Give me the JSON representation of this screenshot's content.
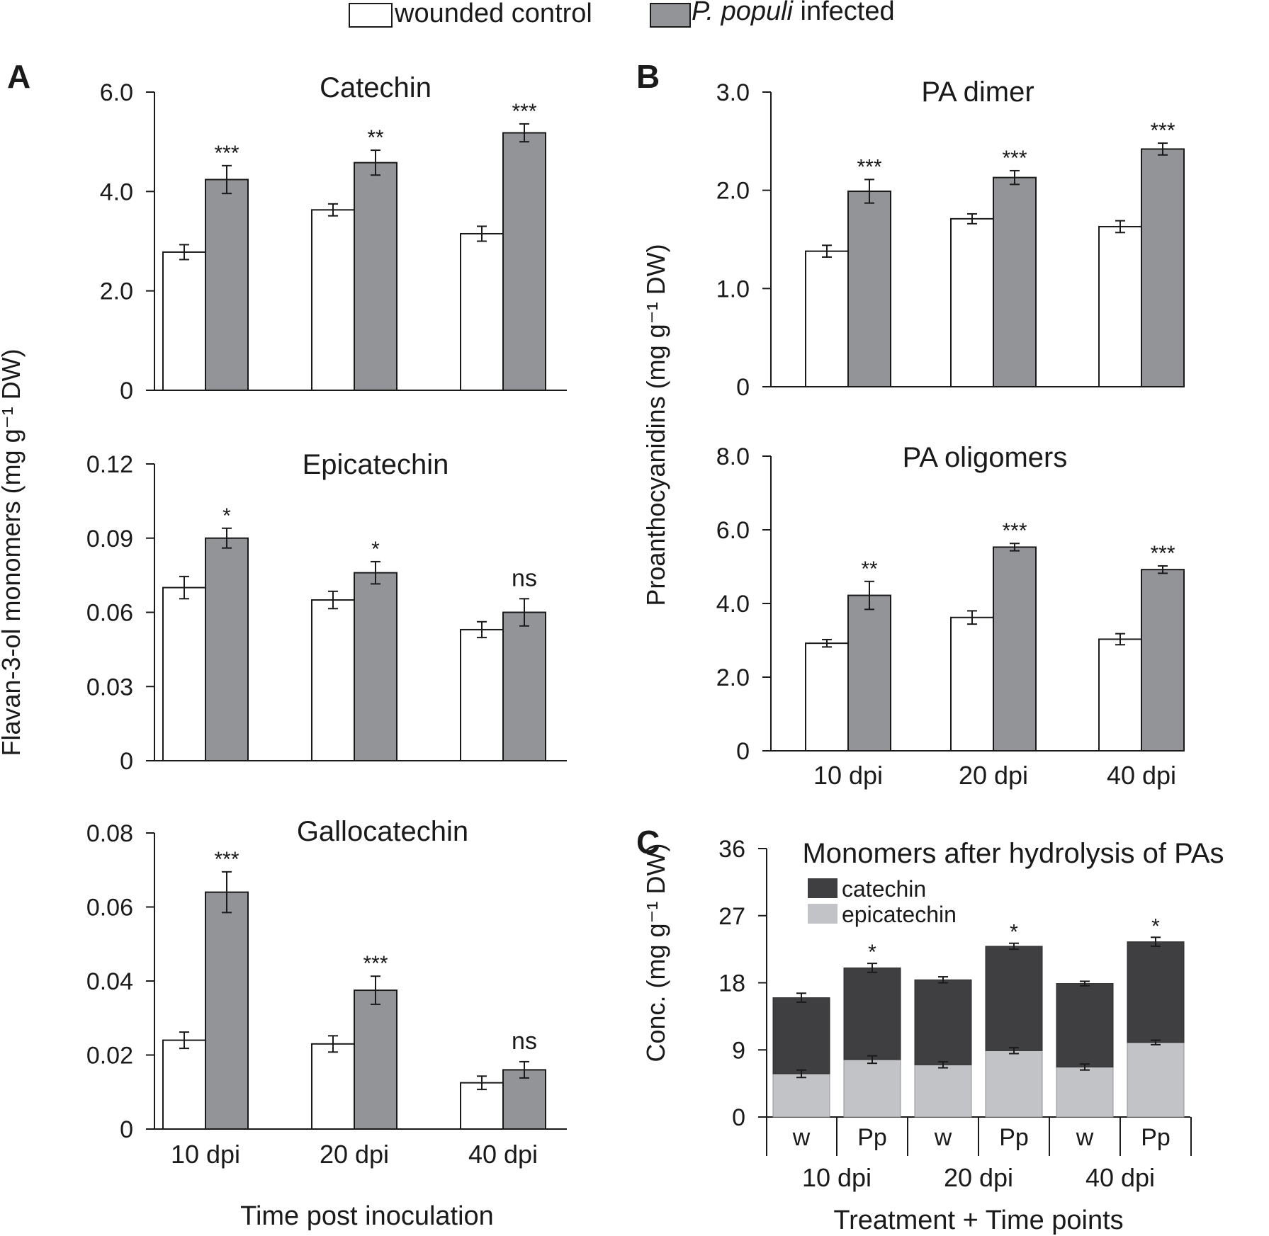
{
  "colors": {
    "control": "#ffffff",
    "infected": "#929497",
    "catechin": "#3f3f41",
    "epicatechin": "#c2c3c6",
    "ink": "#1a1a1a"
  },
  "legend": {
    "control_label": "wounded control",
    "infected_prefix": "P. populi",
    "infected_suffix": " infected"
  },
  "panel_letters": {
    "a": "A",
    "b": "B",
    "c": "C"
  },
  "axis_titles": {
    "a_y": "Flavan-3-ol monomers (mg g⁻¹ DW)",
    "a_x": "Time post inoculation",
    "b_y": "Proanthocyanidins (mg g⁻¹ DW)",
    "c_y": "Conc. (mg g⁻¹ DW)",
    "c_x": "Treatment + Time points"
  },
  "chart_data": [
    {
      "id": "catechin",
      "panel": "A",
      "type": "bar",
      "title": "Catechin",
      "categories": [
        "10 dpi",
        "20 dpi",
        "40 dpi"
      ],
      "ylim": [
        0,
        6.0
      ],
      "yticks": [
        {
          "v": 0,
          "label": "0"
        },
        {
          "v": 2.0,
          "label": "2.0"
        },
        {
          "v": 4.0,
          "label": "4.0"
        },
        {
          "v": 6.0,
          "label": "6.0"
        }
      ],
      "series": [
        {
          "name": "wounded control",
          "values": [
            2.78,
            3.63,
            3.15
          ],
          "errors": [
            0.15,
            0.12,
            0.15
          ]
        },
        {
          "name": "P. populi infected",
          "values": [
            4.24,
            4.58,
            5.18
          ],
          "errors": [
            0.28,
            0.25,
            0.18
          ]
        }
      ],
      "significance": [
        "***",
        "**",
        "***"
      ],
      "show_xticks": false
    },
    {
      "id": "epicatechin",
      "panel": "A",
      "type": "bar",
      "title": "Epicatechin",
      "categories": [
        "10 dpi",
        "20 dpi",
        "40 dpi"
      ],
      "ylim": [
        0,
        0.12
      ],
      "yticks": [
        {
          "v": 0,
          "label": "0"
        },
        {
          "v": 0.03,
          "label": "0.03"
        },
        {
          "v": 0.06,
          "label": "0.06"
        },
        {
          "v": 0.09,
          "label": "0.09"
        },
        {
          "v": 0.12,
          "label": "0.12"
        }
      ],
      "series": [
        {
          "name": "wounded control",
          "values": [
            0.07,
            0.065,
            0.053
          ],
          "errors": [
            0.0045,
            0.0035,
            0.0032
          ]
        },
        {
          "name": "P. populi infected",
          "values": [
            0.09,
            0.076,
            0.06
          ],
          "errors": [
            0.004,
            0.0045,
            0.0055
          ]
        }
      ],
      "significance": [
        "*",
        "*",
        "ns"
      ],
      "show_xticks": false
    },
    {
      "id": "gallocatechin",
      "panel": "A",
      "type": "bar",
      "title": "Gallocatechin",
      "categories": [
        "10 dpi",
        "20 dpi",
        "40 dpi"
      ],
      "ylim": [
        0,
        0.08
      ],
      "yticks": [
        {
          "v": 0,
          "label": "0"
        },
        {
          "v": 0.02,
          "label": "0.02"
        },
        {
          "v": 0.04,
          "label": "0.04"
        },
        {
          "v": 0.06,
          "label": "0.06"
        },
        {
          "v": 0.08,
          "label": "0.08"
        }
      ],
      "series": [
        {
          "name": "wounded control",
          "values": [
            0.024,
            0.023,
            0.0125
          ],
          "errors": [
            0.0022,
            0.0022,
            0.0018
          ]
        },
        {
          "name": "P. populi infected",
          "values": [
            0.064,
            0.0375,
            0.016
          ],
          "errors": [
            0.0055,
            0.0038,
            0.0022
          ]
        }
      ],
      "significance": [
        "***",
        "***",
        "ns"
      ],
      "show_xticks": true
    },
    {
      "id": "pa-dimer",
      "panel": "B",
      "type": "bar",
      "title": "PA dimer",
      "categories": [
        "10 dpi",
        "20 dpi",
        "40 dpi"
      ],
      "ylim": [
        0,
        3.0
      ],
      "yticks": [
        {
          "v": 0,
          "label": "0"
        },
        {
          "v": 1.0,
          "label": "1.0"
        },
        {
          "v": 2.0,
          "label": "2.0"
        },
        {
          "v": 3.0,
          "label": "3.0"
        }
      ],
      "series": [
        {
          "name": "wounded control",
          "values": [
            1.38,
            1.71,
            1.63
          ],
          "errors": [
            0.06,
            0.05,
            0.06
          ]
        },
        {
          "name": "P. populi infected",
          "values": [
            1.99,
            2.13,
            2.42
          ],
          "errors": [
            0.12,
            0.07,
            0.06
          ]
        }
      ],
      "significance": [
        "***",
        "***",
        "***"
      ],
      "show_xticks": false
    },
    {
      "id": "pa-oligomers",
      "panel": "B",
      "type": "bar",
      "title": "PA oligomers",
      "categories": [
        "10 dpi",
        "20 dpi",
        "40 dpi"
      ],
      "ylim": [
        0,
        8.0
      ],
      "yticks": [
        {
          "v": 0,
          "label": "0"
        },
        {
          "v": 2.0,
          "label": "2.0"
        },
        {
          "v": 4.0,
          "label": "4.0"
        },
        {
          "v": 6.0,
          "label": "6.0"
        },
        {
          "v": 8.0,
          "label": "8.0"
        }
      ],
      "series": [
        {
          "name": "wounded control",
          "values": [
            2.92,
            3.62,
            3.03
          ],
          "errors": [
            0.1,
            0.18,
            0.15
          ]
        },
        {
          "name": "P. populi infected",
          "values": [
            4.22,
            5.53,
            4.92
          ],
          "errors": [
            0.38,
            0.1,
            0.1
          ]
        }
      ],
      "significance": [
        "**",
        "***",
        "***"
      ],
      "show_xticks": true
    },
    {
      "id": "hydrolysis",
      "panel": "C",
      "type": "bar",
      "stacked": true,
      "title": "Monomers after hydrolysis of PAs",
      "categories": [
        "w",
        "Pp",
        "w",
        "Pp",
        "w",
        "Pp"
      ],
      "groups": [
        "10 dpi",
        "20 dpi",
        "40 dpi"
      ],
      "ylim": [
        0,
        36
      ],
      "yticks": [
        {
          "v": 0,
          "label": "0"
        },
        {
          "v": 9,
          "label": "9"
        },
        {
          "v": 18,
          "label": "18"
        },
        {
          "v": 27,
          "label": "27"
        },
        {
          "v": 36,
          "label": "36"
        }
      ],
      "series": [
        {
          "name": "epicatechin",
          "values": [
            5.8,
            7.7,
            7.0,
            8.9,
            6.7,
            10.0
          ],
          "errors": [
            0.5,
            0.5,
            0.4,
            0.4,
            0.4,
            0.3
          ]
        },
        {
          "name": "catechin",
          "values": [
            10.2,
            12.3,
            11.4,
            14.0,
            11.2,
            13.5
          ],
          "errors": [
            0.6,
            0.6,
            0.4,
            0.4,
            0.3,
            0.6
          ]
        }
      ],
      "significance": [
        "",
        "*",
        "",
        "*",
        "",
        "*"
      ],
      "legend": [
        "catechin",
        "epicatechin"
      ]
    }
  ]
}
